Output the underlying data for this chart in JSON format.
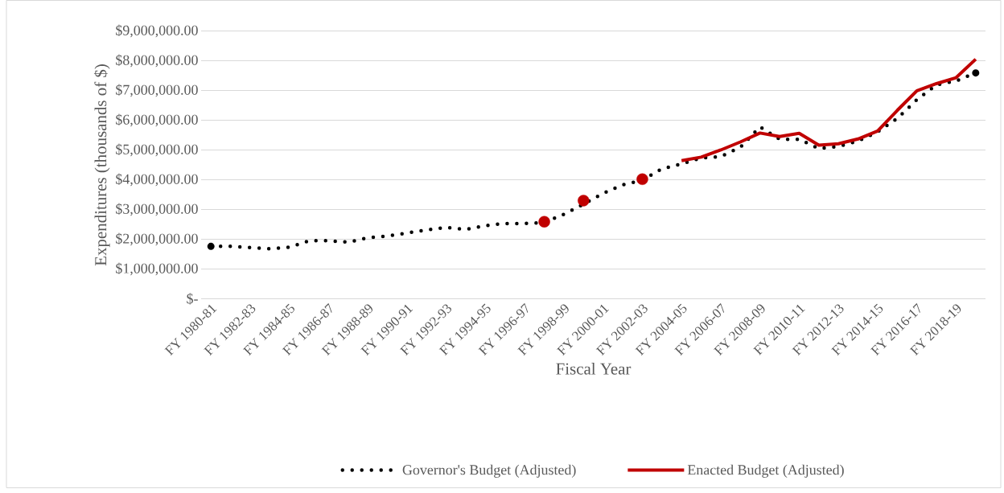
{
  "chart_data": {
    "type": "line",
    "xlabel": "Fiscal Year",
    "ylabel": "Expenditures (thousands of $)",
    "categories": [
      "FY 1980-81",
      null,
      "FY 1982-83",
      null,
      "FY 1984-85",
      null,
      "FY 1986-87",
      null,
      "FY 1988-89",
      null,
      "FY 1990-91",
      null,
      "FY 1992-93",
      null,
      "FY 1994-95",
      null,
      "FY 1996-97",
      null,
      "FY 1998-99",
      null,
      "FY 2000-01",
      null,
      "FY 2002-03",
      null,
      "FY 2004-05",
      null,
      "FY 2006-07",
      null,
      "FY 2008-09",
      null,
      "FY 2010-11",
      null,
      "FY 2012-13",
      null,
      "FY 2014-15",
      null,
      "FY 2016-17",
      null,
      "FY 2018-19",
      null
    ],
    "series": [
      {
        "name": "Governor's Budget (Adjusted)",
        "color": "#000000",
        "line_style": "dotted",
        "values": [
          1760000,
          1760000,
          1720000,
          1680000,
          1730000,
          1950000,
          1950000,
          1900000,
          2050000,
          2110000,
          2210000,
          2310000,
          2400000,
          2330000,
          2460000,
          2530000,
          2530000,
          2560000,
          2840000,
          3180000,
          3540000,
          3830000,
          3980000,
          4370000,
          4530000,
          4730000,
          4780000,
          5090000,
          5780000,
          5360000,
          5360000,
          5050000,
          5120000,
          5300000,
          5610000,
          6060000,
          6690000,
          7190000,
          7320000,
          7590000
        ]
      },
      {
        "name": "Enacted Budget (Adjusted)",
        "color": "#c00000",
        "line_style": "solid",
        "values": [
          null,
          null,
          null,
          null,
          null,
          null,
          null,
          null,
          null,
          null,
          null,
          null,
          null,
          null,
          null,
          null,
          null,
          2590000,
          null,
          3300000,
          null,
          null,
          4020000,
          null,
          4640000,
          4760000,
          5000000,
          5270000,
          5570000,
          5450000,
          5560000,
          5160000,
          5210000,
          5370000,
          5640000,
          6330000,
          6990000,
          7230000,
          7430000,
          8050000
        ]
      }
    ],
    "ylim": [
      0,
      9000000
    ],
    "yticks": [
      {
        "value": 0,
        "label": "$-"
      },
      {
        "value": 1000000,
        "label": "$1,000,000.00"
      },
      {
        "value": 2000000,
        "label": "$2,000,000.00"
      },
      {
        "value": 3000000,
        "label": "$3,000,000.00"
      },
      {
        "value": 4000000,
        "label": "$4,000,000.00"
      },
      {
        "value": 5000000,
        "label": "$5,000,000.00"
      },
      {
        "value": 6000000,
        "label": "$6,000,000.00"
      },
      {
        "value": 7000000,
        "label": "$7,000,000.00"
      },
      {
        "value": 8000000,
        "label": "$8,000,000.00"
      },
      {
        "value": 9000000,
        "label": "$9,000,000.00"
      }
    ],
    "grid": "y",
    "legend": "bottom"
  }
}
